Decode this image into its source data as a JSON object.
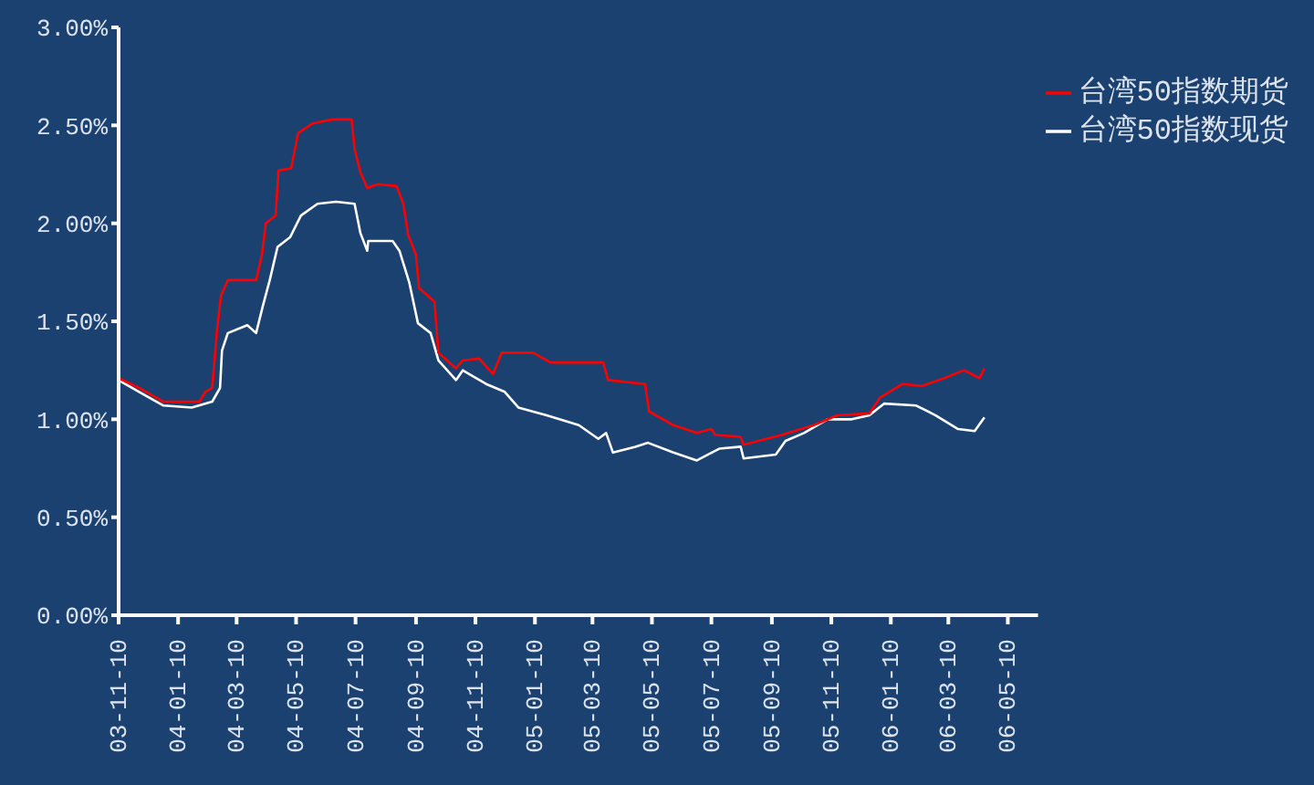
{
  "chart_data": {
    "type": "line",
    "series": [
      {
        "name": "台湾50指数现货",
        "color": "#ffffff",
        "x": [
          "2003-11-10",
          "2003-12-01",
          "2003-12-26",
          "2004-01-24",
          "2004-02-14",
          "2004-02-22",
          "2004-02-24",
          "2004-03-01",
          "2004-03-21",
          "2004-03-30",
          "2004-04-06",
          "2004-04-13",
          "2004-04-21",
          "2004-05-04",
          "2004-05-15",
          "2004-06-01",
          "2004-06-20",
          "2004-07-09",
          "2004-07-15",
          "2004-07-22",
          "2004-07-23",
          "2004-08-17",
          "2004-08-24",
          "2004-09-03",
          "2004-09-12",
          "2004-09-25",
          "2004-10-03",
          "2004-10-21",
          "2004-10-28",
          "2004-11-21",
          "2004-12-10",
          "2004-12-24",
          "2005-01-22",
          "2005-02-24",
          "2005-03-16",
          "2005-03-24",
          "2005-03-31",
          "2005-04-23",
          "2005-05-06",
          "2005-06-01",
          "2005-06-25",
          "2005-07-18",
          "2005-08-09",
          "2005-08-12",
          "2005-09-14",
          "2005-09-24",
          "2005-10-13",
          "2005-11-06",
          "2005-12-01",
          "2005-12-19",
          "2006-01-03",
          "2006-02-05",
          "2006-02-25",
          "2006-03-20",
          "2006-04-06",
          "2006-04-16"
        ],
        "values": [
          1.2,
          1.14,
          1.07,
          1.06,
          1.09,
          1.16,
          1.35,
          1.44,
          1.48,
          1.44,
          1.58,
          1.71,
          1.88,
          1.93,
          2.04,
          2.1,
          2.11,
          2.1,
          1.95,
          1.86,
          1.91,
          1.91,
          1.86,
          1.7,
          1.49,
          1.44,
          1.3,
          1.2,
          1.25,
          1.18,
          1.14,
          1.06,
          1.02,
          0.97,
          0.9,
          0.93,
          0.83,
          0.86,
          0.88,
          0.83,
          0.79,
          0.85,
          0.86,
          0.8,
          0.82,
          0.89,
          0.93,
          1.0,
          1.0,
          1.02,
          1.08,
          1.07,
          1.02,
          0.95,
          0.94,
          1.01
        ]
      },
      {
        "name": "台湾50指数期货",
        "color": "#ff0000",
        "x": [
          "2003-11-10",
          "2003-12-01",
          "2003-12-26",
          "2004-02-01",
          "2004-02-07",
          "2004-02-14",
          "2004-02-19",
          "2004-02-23",
          "2004-03-01",
          "2004-03-30",
          "2004-04-05",
          "2004-04-09",
          "2004-04-19",
          "2004-04-22",
          "2004-05-05",
          "2004-05-12",
          "2004-05-27",
          "2004-06-16",
          "2004-07-06",
          "2004-07-09",
          "2004-07-15",
          "2004-07-22",
          "2004-08-02",
          "2004-08-21",
          "2004-08-28",
          "2004-09-02",
          "2004-09-10",
          "2004-09-13",
          "2004-09-29",
          "2004-10-03",
          "2004-10-21",
          "2004-10-28",
          "2004-11-14",
          "2004-11-28",
          "2004-12-07",
          "2005-01-08",
          "2005-01-26",
          "2005-03-21",
          "2005-03-26",
          "2005-05-03",
          "2005-05-07",
          "2005-06-01",
          "2005-06-25",
          "2005-07-10",
          "2005-07-14",
          "2005-08-09",
          "2005-08-12",
          "2005-09-20",
          "2005-10-23",
          "2005-11-16",
          "2005-12-19",
          "2005-12-30",
          "2006-01-22",
          "2006-02-11",
          "2006-03-06",
          "2006-03-26",
          "2006-04-11",
          "2006-04-16"
        ],
        "values": [
          1.21,
          1.16,
          1.09,
          1.09,
          1.14,
          1.16,
          1.46,
          1.63,
          1.71,
          1.71,
          1.84,
          2.0,
          2.04,
          2.27,
          2.28,
          2.46,
          2.51,
          2.53,
          2.53,
          2.38,
          2.26,
          2.18,
          2.2,
          2.19,
          2.1,
          1.94,
          1.84,
          1.67,
          1.6,
          1.34,
          1.26,
          1.3,
          1.31,
          1.23,
          1.34,
          1.34,
          1.29,
          1.29,
          1.2,
          1.18,
          1.04,
          0.97,
          0.93,
          0.95,
          0.92,
          0.91,
          0.87,
          0.92,
          0.97,
          1.02,
          1.03,
          1.11,
          1.18,
          1.17,
          1.21,
          1.25,
          1.21,
          1.26
        ]
      }
    ],
    "xlim": [
      "2003-11-10",
      "2006-06-10"
    ],
    "xticks": [
      {
        "value": "2003-11-10",
        "label": "03-11-10"
      },
      {
        "value": "2004-01-10",
        "label": "04-01-10"
      },
      {
        "value": "2004-03-10",
        "label": "04-03-10"
      },
      {
        "value": "2004-05-10",
        "label": "04-05-10"
      },
      {
        "value": "2004-07-10",
        "label": "04-07-10"
      },
      {
        "value": "2004-09-10",
        "label": "04-09-10"
      },
      {
        "value": "2004-11-10",
        "label": "04-11-10"
      },
      {
        "value": "2005-01-10",
        "label": "05-01-10"
      },
      {
        "value": "2005-03-10",
        "label": "05-03-10"
      },
      {
        "value": "2005-05-10",
        "label": "05-05-10"
      },
      {
        "value": "2005-07-10",
        "label": "05-07-10"
      },
      {
        "value": "2005-09-10",
        "label": "05-09-10"
      },
      {
        "value": "2005-11-10",
        "label": "05-11-10"
      },
      {
        "value": "2006-01-10",
        "label": "06-01-10"
      },
      {
        "value": "2006-03-10",
        "label": "06-03-10"
      },
      {
        "value": "2006-05-10",
        "label": "06-05-10"
      }
    ],
    "ylim": [
      0,
      3
    ],
    "yticks": [
      {
        "value": 0,
        "label": "0.00%"
      },
      {
        "value": 0.5,
        "label": "0.50%"
      },
      {
        "value": 1,
        "label": "1.00%"
      },
      {
        "value": 1.5,
        "label": "1.50%"
      },
      {
        "value": 2,
        "label": "2.00%"
      },
      {
        "value": 2.5,
        "label": "2.50%"
      },
      {
        "value": 3,
        "label": "3.00%"
      }
    ],
    "legend": "top right",
    "marker": "none",
    "line_style": "solid"
  }
}
